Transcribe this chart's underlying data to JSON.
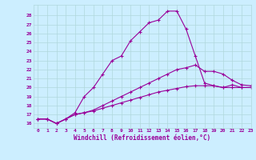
{
  "xlabel": "Windchill (Refroidissement éolien,°C)",
  "background_color": "#cceeff",
  "line_color": "#990099",
  "xlim": [
    -0.5,
    23
  ],
  "ylim": [
    15.5,
    29.2
  ],
  "xticks": [
    0,
    1,
    2,
    3,
    4,
    5,
    6,
    7,
    8,
    9,
    10,
    11,
    12,
    13,
    14,
    15,
    16,
    17,
    18,
    19,
    20,
    21,
    22,
    23
  ],
  "yticks": [
    16,
    17,
    18,
    19,
    20,
    21,
    22,
    23,
    24,
    25,
    26,
    27,
    28
  ],
  "series": [
    [
      16.5,
      16.5,
      16.0,
      16.5,
      17.2,
      19.0,
      20.0,
      21.5,
      23.0,
      23.5,
      25.2,
      26.2,
      27.2,
      27.5,
      28.5,
      28.5,
      26.5,
      23.5,
      20.5,
      20.2,
      20.0,
      20.3,
      20.0,
      20.0
    ],
    [
      16.5,
      16.5,
      16.0,
      16.5,
      17.0,
      17.2,
      17.5,
      18.0,
      18.5,
      19.0,
      19.5,
      20.0,
      20.5,
      21.0,
      21.5,
      22.0,
      22.2,
      22.5,
      21.8,
      21.8,
      21.5,
      20.8,
      20.3,
      20.2
    ],
    [
      16.5,
      16.5,
      16.0,
      16.5,
      17.0,
      17.2,
      17.4,
      17.7,
      18.0,
      18.3,
      18.6,
      18.9,
      19.2,
      19.5,
      19.7,
      19.9,
      20.1,
      20.2,
      20.2,
      20.2,
      20.0,
      20.0,
      20.0,
      20.0
    ]
  ]
}
